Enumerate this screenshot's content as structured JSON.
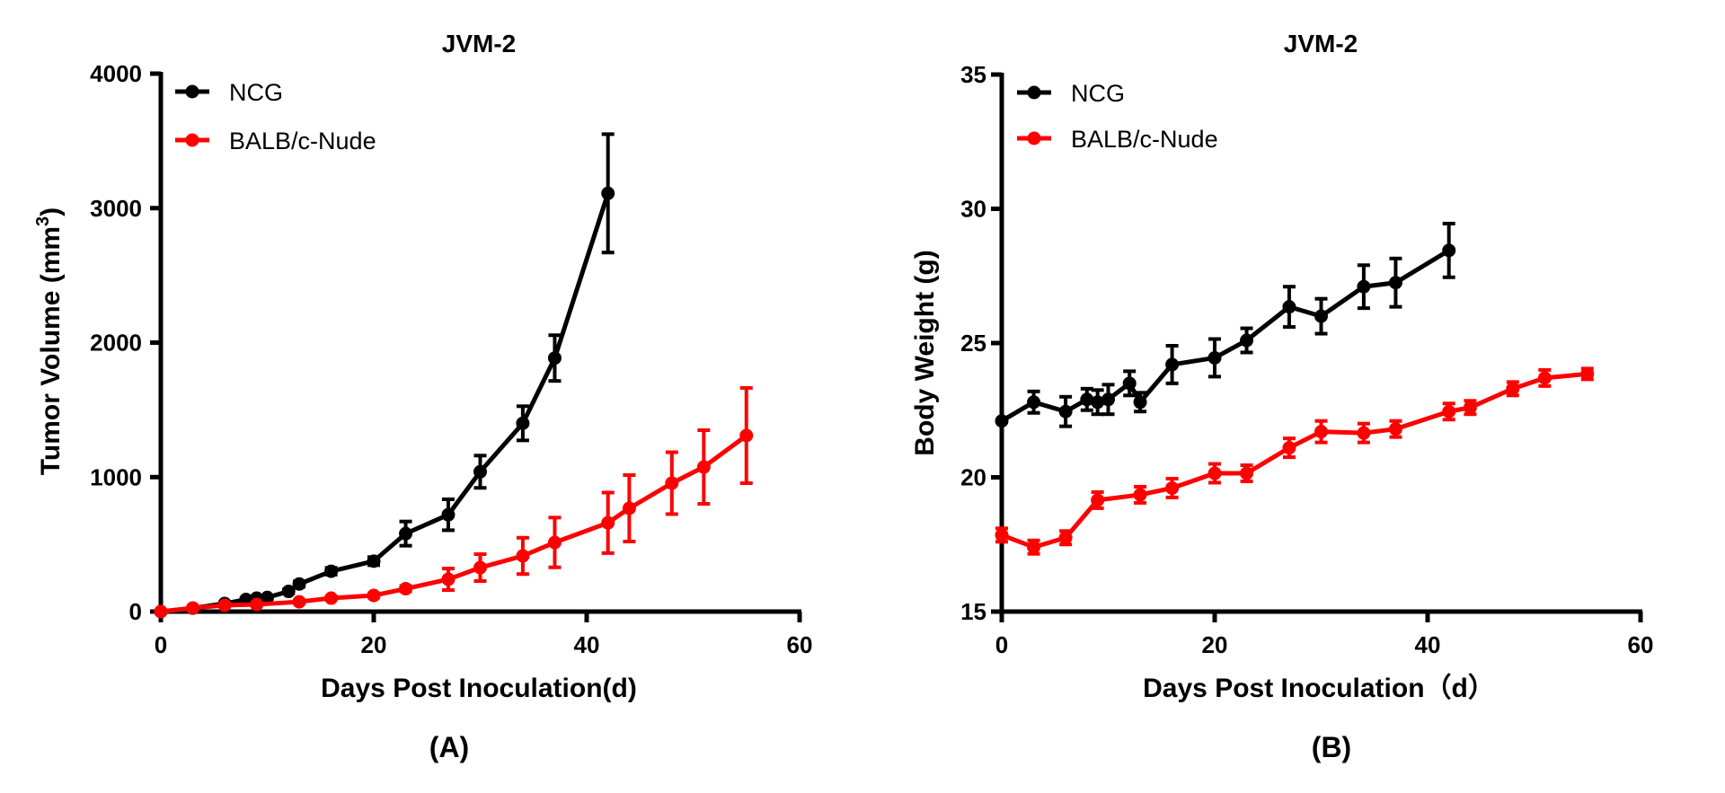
{
  "chart_data": [
    {
      "panel_label": "(A)",
      "type": "line",
      "title": "JVM-2",
      "xlabel": "Days Post Inoculation(d)",
      "ylabel": "Tumor Volume (mm",
      "ylabel_sup": "3",
      "ylabel_close": ")",
      "xlim": [
        0,
        60
      ],
      "ylim": [
        0,
        4000
      ],
      "xticks": [
        0,
        20,
        40,
        60
      ],
      "yticks": [
        0,
        1000,
        2000,
        3000,
        4000
      ],
      "grid": false,
      "legend_position": "top-left",
      "error_bars": "SEM",
      "series": [
        {
          "name": "NCG",
          "color": "#000000",
          "x": [
            0,
            3,
            6,
            8,
            9,
            10,
            12,
            13,
            16,
            20,
            23,
            27,
            30,
            34,
            37,
            42
          ],
          "y": [
            0,
            25,
            60,
            90,
            100,
            105,
            150,
            205,
            300,
            375,
            580,
            720,
            1040,
            1400,
            1885,
            3110
          ],
          "err": [
            0,
            5,
            8,
            10,
            12,
            12,
            15,
            20,
            25,
            30,
            90,
            115,
            120,
            127,
            170,
            440
          ]
        },
        {
          "name": "BALB/c-Nude",
          "color": "#ff0000",
          "x": [
            0,
            3,
            6,
            9,
            13,
            16,
            20,
            23,
            27,
            30,
            34,
            37,
            42,
            44,
            48,
            51,
            55
          ],
          "y": [
            0,
            27,
            47,
            53,
            73,
            100,
            120,
            170,
            240,
            327,
            414,
            514,
            660,
            768,
            955,
            1075,
            1309
          ],
          "err": [
            0,
            5,
            6,
            8,
            10,
            12,
            15,
            20,
            80,
            100,
            135,
            185,
            225,
            247,
            230,
            274,
            354
          ]
        }
      ]
    },
    {
      "panel_label": "(B)",
      "type": "line",
      "title": "JVM-2",
      "xlabel": "Days Post Inoculation（d）",
      "ylabel": "Body Weight (g)",
      "ylabel_sup": "",
      "ylabel_close": "",
      "xlim": [
        0,
        60
      ],
      "ylim": [
        15,
        35
      ],
      "xticks": [
        0,
        20,
        40,
        60
      ],
      "yticks": [
        15,
        20,
        25,
        30,
        35
      ],
      "grid": false,
      "legend_position": "top-left",
      "error_bars": "SEM",
      "series": [
        {
          "name": "NCG",
          "color": "#000000",
          "x": [
            0,
            3,
            6,
            8,
            9,
            10,
            12,
            13,
            16,
            20,
            23,
            27,
            30,
            34,
            37,
            42
          ],
          "y": [
            22.1,
            22.8,
            22.45,
            22.9,
            22.8,
            22.9,
            23.5,
            22.8,
            24.2,
            24.45,
            25.1,
            26.35,
            26.0,
            27.1,
            27.25,
            28.45
          ],
          "err": [
            0,
            0.4,
            0.55,
            0.4,
            0.45,
            0.55,
            0.45,
            0.35,
            0.7,
            0.7,
            0.45,
            0.75,
            0.65,
            0.8,
            0.9,
            1.0
          ]
        },
        {
          "name": "BALB/c-Nude",
          "color": "#ff0000",
          "x": [
            0,
            3,
            6,
            9,
            13,
            16,
            20,
            23,
            27,
            30,
            34,
            37,
            42,
            44,
            48,
            51,
            55
          ],
          "y": [
            17.85,
            17.4,
            17.75,
            19.15,
            19.35,
            19.6,
            20.15,
            20.15,
            21.1,
            21.7,
            21.65,
            21.8,
            22.45,
            22.6,
            23.3,
            23.7,
            23.85
          ],
          "err": [
            0.25,
            0.25,
            0.25,
            0.3,
            0.3,
            0.35,
            0.35,
            0.3,
            0.35,
            0.4,
            0.35,
            0.3,
            0.3,
            0.25,
            0.25,
            0.3,
            0.2
          ]
        }
      ]
    }
  ]
}
